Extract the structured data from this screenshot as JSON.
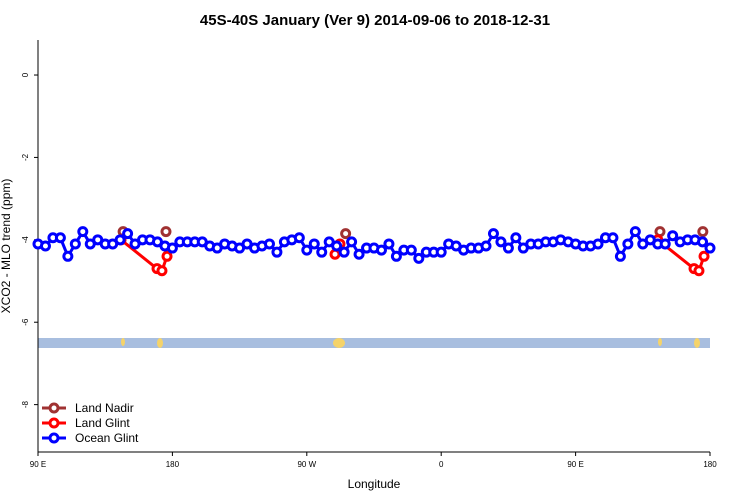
{
  "chart_data": {
    "type": "line",
    "title": "45S-40S January (Ver 9)   2014-09-06 to 2018-12-31",
    "x_label": "Longitude",
    "y_label": "XCO2 - MLO trend (ppm)",
    "xlim": [
      90,
      540
    ],
    "ylim": [
      -9.15,
      0.85
    ],
    "xticks": [
      {
        "value": 90,
        "label": "90 E"
      },
      180,
      {
        "value": 270,
        "label": "90 W"
      },
      {
        "value": 360,
        "label": "0"
      },
      {
        "value": 450,
        "label": "90 E"
      },
      {
        "value": 540,
        "label": "180"
      }
    ],
    "yticks": [
      0,
      -2,
      -4,
      -6,
      -8
    ],
    "legend": "bottomleft",
    "series": [
      {
        "name": "Land Nadir",
        "color": "#a03232",
        "x": [
          147,
          null,
          175.7,
          null,
          296,
          null,
          506.5,
          null,
          535.2
        ],
        "values": [
          -3.8,
          null,
          -3.8,
          null,
          -3.85,
          null,
          -3.8,
          null,
          -3.8
        ]
      },
      {
        "name": "Land Glint",
        "color": "#ff0000",
        "x": [
          145.6,
          169.7,
          173,
          176.4,
          null,
          288.9,
          292.2,
          null,
          505,
          529.3,
          532.6,
          536
        ],
        "values": [
          -4.0,
          -4.7,
          -4.75,
          -4.4,
          null,
          -4.35,
          -4.1,
          null,
          -4.0,
          -4.7,
          -4.75,
          -4.4
        ]
      },
      {
        "name": "Ocean Glint",
        "color": "#0000ff",
        "x": [
          90,
          95,
          100,
          105,
          110,
          115,
          120,
          125,
          130,
          135,
          140,
          145,
          150,
          155,
          160,
          165,
          170,
          175,
          180,
          185,
          190,
          195,
          200,
          205,
          210,
          215,
          220,
          225,
          230,
          235,
          240,
          245,
          250,
          255,
          260,
          265,
          270,
          275,
          280,
          285,
          290,
          295,
          300,
          305,
          310,
          315,
          320,
          325,
          330,
          335,
          340,
          345,
          350,
          355,
          360,
          365,
          370,
          375,
          380,
          385,
          390,
          395,
          400,
          405,
          410,
          415,
          420,
          425,
          430,
          435,
          440,
          445,
          450,
          455,
          460,
          465,
          470,
          475,
          480,
          485,
          490,
          495,
          500,
          505,
          510,
          515,
          520,
          525,
          530,
          535,
          540
        ],
        "values": [
          -4.1,
          -4.15,
          -3.95,
          -3.95,
          -4.4,
          -4.1,
          -3.8,
          -4.1,
          -4.0,
          -4.1,
          -4.1,
          -4.0,
          -3.85,
          -4.1,
          -4.0,
          -4.0,
          -4.05,
          -4.15,
          -4.2,
          -4.05,
          -4.05,
          -4.05,
          -4.05,
          -4.15,
          -4.2,
          -4.1,
          -4.15,
          -4.2,
          -4.1,
          -4.2,
          -4.15,
          -4.1,
          -4.3,
          -4.05,
          -4.0,
          -3.95,
          -4.25,
          -4.1,
          -4.3,
          -4.05,
          -4.15,
          -4.3,
          -4.05,
          -4.35,
          -4.2,
          -4.2,
          -4.25,
          -4.1,
          -4.4,
          -4.25,
          -4.25,
          -4.45,
          -4.3,
          -4.3,
          -4.3,
          -4.1,
          -4.15,
          -4.25,
          -4.2,
          -4.2,
          -4.15,
          -3.85,
          -4.05,
          -4.2,
          -3.95,
          -4.2,
          -4.1,
          -4.1,
          -4.05,
          -4.05,
          -4.0,
          -4.05,
          -4.1,
          -4.15,
          -4.15,
          -4.1,
          -3.95,
          -3.95,
          -4.4,
          -4.1,
          -3.8,
          -4.1,
          -4.0,
          -4.1,
          -4.1,
          -3.9,
          -4.05,
          -4.0,
          -4.0,
          -4.05,
          -4.2
        ]
      }
    ]
  }
}
